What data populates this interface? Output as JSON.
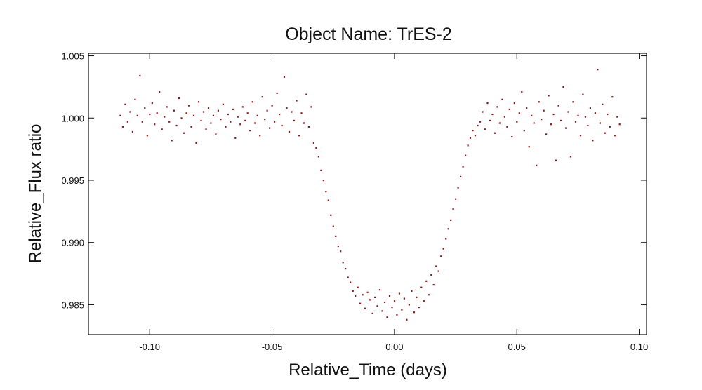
{
  "chart_data": {
    "type": "scatter",
    "title": "Object Name:  TrES-2",
    "xlabel": "Relative_Time (days)",
    "ylabel": "Relative_Flux ratio",
    "xlim": [
      -0.125,
      0.103
    ],
    "ylim": [
      0.9826,
      1.0052
    ],
    "xticks": [
      -0.1,
      -0.05,
      0.0,
      0.05,
      0.1
    ],
    "xtick_labels": [
      "-0.10",
      "-0.05",
      "0.00",
      "0.05",
      "0.10"
    ],
    "yticks": [
      0.985,
      0.99,
      0.995,
      1.0,
      1.005
    ],
    "ytick_labels": [
      "0.985",
      "0.990",
      "0.995",
      "1.000",
      "1.005"
    ],
    "grid": false,
    "marker_color": "#8b1a1a",
    "series": [
      {
        "values": [
          [
            -0.112,
            1.0002
          ],
          [
            -0.111,
            0.9993
          ],
          [
            -0.11,
            1.0011
          ],
          [
            -0.109,
            0.9997
          ],
          [
            -0.108,
            1.0005
          ],
          [
            -0.107,
            0.9989
          ],
          [
            -0.106,
            1.0015
          ],
          [
            -0.105,
            1.0002
          ],
          [
            -0.104,
            1.0034
          ],
          [
            -0.103,
            0.9997
          ],
          [
            -0.102,
            1.0008
          ],
          [
            -0.101,
            0.9986
          ],
          [
            -0.1,
            1.0003
          ],
          [
            -0.099,
            1.0012
          ],
          [
            -0.098,
            0.9995
          ],
          [
            -0.097,
            1.0004
          ],
          [
            -0.096,
            1.0021
          ],
          [
            -0.095,
            0.9991
          ],
          [
            -0.094,
            1.0001
          ],
          [
            -0.093,
            1.0009
          ],
          [
            -0.092,
            0.9997
          ],
          [
            -0.091,
            0.9982
          ],
          [
            -0.09,
            1.0006
          ],
          [
            -0.089,
            0.9994
          ],
          [
            -0.088,
            1.0016
          ],
          [
            -0.087,
            1.0
          ],
          [
            -0.086,
            0.9988
          ],
          [
            -0.085,
            1.0004
          ],
          [
            -0.084,
            1.001
          ],
          [
            -0.083,
            0.9993
          ],
          [
            -0.082,
            1.0002
          ],
          [
            -0.081,
            0.998
          ],
          [
            -0.08,
            1.0013
          ],
          [
            -0.079,
            0.9998
          ],
          [
            -0.078,
            1.0005
          ],
          [
            -0.077,
            0.9991
          ],
          [
            -0.076,
            1.0008
          ],
          [
            -0.075,
            0.9996
          ],
          [
            -0.074,
            1.0002
          ],
          [
            -0.073,
            0.9987
          ],
          [
            -0.072,
            1.0006
          ],
          [
            -0.071,
            0.9999
          ],
          [
            -0.07,
            1.0011
          ],
          [
            -0.069,
            0.9993
          ],
          [
            -0.068,
            1.0003
          ],
          [
            -0.067,
            0.9997
          ],
          [
            -0.066,
            1.0007
          ],
          [
            -0.065,
            0.9984
          ],
          [
            -0.064,
            1.0001
          ],
          [
            -0.063,
            0.9995
          ],
          [
            -0.062,
            1.0009
          ],
          [
            -0.061,
            0.9998
          ],
          [
            -0.06,
            1.0004
          ],
          [
            -0.059,
            0.999
          ],
          [
            -0.058,
            1.0013
          ],
          [
            -0.057,
            0.9996
          ],
          [
            -0.056,
            1.0002
          ],
          [
            -0.055,
            0.9986
          ],
          [
            -0.054,
            1.0017
          ],
          [
            -0.053,
            0.9999
          ],
          [
            -0.052,
            1.0006
          ],
          [
            -0.051,
            0.9992
          ],
          [
            -0.05,
            1.001
          ],
          [
            -0.049,
            0.9997
          ],
          [
            -0.048,
            1.002
          ],
          [
            -0.047,
            1.0003
          ],
          [
            -0.046,
            0.9994
          ],
          [
            -0.045,
            1.0033
          ],
          [
            -0.044,
            1.0008
          ],
          [
            -0.043,
            0.9989
          ],
          [
            -0.042,
            1.0005
          ],
          [
            -0.041,
            0.9998
          ],
          [
            -0.04,
            1.0014
          ],
          [
            -0.039,
            0.9986
          ],
          [
            -0.038,
            1.0004
          ],
          [
            -0.037,
            0.9996
          ],
          [
            -0.036,
            1.0019
          ],
          [
            -0.035,
            0.9993
          ],
          [
            -0.034,
            1.0009
          ],
          [
            -0.033,
            0.998
          ],
          [
            -0.032,
            0.9976
          ],
          [
            -0.031,
            0.9969
          ],
          [
            -0.03,
            0.9958
          ],
          [
            -0.029,
            0.995
          ],
          [
            -0.028,
            0.9941
          ],
          [
            -0.027,
            0.9934
          ],
          [
            -0.026,
            0.9922
          ],
          [
            -0.025,
            0.9913
          ],
          [
            -0.024,
            0.9905
          ],
          [
            -0.023,
            0.9897
          ],
          [
            -0.022,
            0.9893
          ],
          [
            -0.021,
            0.9884
          ],
          [
            -0.02,
            0.9879
          ],
          [
            -0.019,
            0.9872
          ],
          [
            -0.018,
            0.9868
          ],
          [
            -0.017,
            0.9861
          ],
          [
            -0.016,
            0.9857
          ],
          [
            -0.015,
            0.9864
          ],
          [
            -0.014,
            0.9851
          ],
          [
            -0.013,
            0.9858
          ],
          [
            -0.012,
            0.9847
          ],
          [
            -0.011,
            0.986
          ],
          [
            -0.01,
            0.9854
          ],
          [
            -0.009,
            0.9843
          ],
          [
            -0.008,
            0.9856
          ],
          [
            -0.007,
            0.9849
          ],
          [
            -0.006,
            0.9862
          ],
          [
            -0.005,
            0.9845
          ],
          [
            -0.004,
            0.9852
          ],
          [
            -0.003,
            0.984
          ],
          [
            -0.002,
            0.9857
          ],
          [
            -0.001,
            0.9848
          ],
          [
            0.0,
            0.9853
          ],
          [
            0.001,
            0.9842
          ],
          [
            0.002,
            0.9859
          ],
          [
            0.003,
            0.9846
          ],
          [
            0.004,
            0.9855
          ],
          [
            0.005,
            0.9838
          ],
          [
            0.006,
            0.985
          ],
          [
            0.007,
            0.9861
          ],
          [
            0.008,
            0.9844
          ],
          [
            0.009,
            0.9856
          ],
          [
            0.01,
            0.9848
          ],
          [
            0.011,
            0.9864
          ],
          [
            0.012,
            0.9853
          ],
          [
            0.013,
            0.9869
          ],
          [
            0.014,
            0.9858
          ],
          [
            0.015,
            0.9874
          ],
          [
            0.016,
            0.9866
          ],
          [
            0.017,
            0.9881
          ],
          [
            0.018,
            0.9877
          ],
          [
            0.019,
            0.9889
          ],
          [
            0.02,
            0.9895
          ],
          [
            0.021,
            0.9903
          ],
          [
            0.022,
            0.9911
          ],
          [
            0.023,
            0.9918
          ],
          [
            0.024,
            0.9927
          ],
          [
            0.025,
            0.9935
          ],
          [
            0.026,
            0.9944
          ],
          [
            0.027,
            0.9953
          ],
          [
            0.028,
            0.9961
          ],
          [
            0.029,
            0.997
          ],
          [
            0.03,
            0.9978
          ],
          [
            0.031,
            0.9984
          ],
          [
            0.032,
            0.999
          ],
          [
            0.033,
            0.9986
          ],
          [
            0.034,
            0.9994
          ],
          [
            0.035,
            0.9997
          ],
          [
            0.036,
            1.0005
          ],
          [
            0.037,
            0.9991
          ],
          [
            0.038,
            1.0012
          ],
          [
            0.039,
            0.9998
          ],
          [
            0.04,
            1.0003
          ],
          [
            0.041,
            0.9988
          ],
          [
            0.042,
            1.0009
          ],
          [
            0.043,
            0.9996
          ],
          [
            0.044,
            1.0015
          ],
          [
            0.045,
            1.0001
          ],
          [
            0.046,
            0.9993
          ],
          [
            0.047,
            1.0007
          ],
          [
            0.048,
            0.9985
          ],
          [
            0.049,
            1.0012
          ],
          [
            0.05,
            0.9997
          ],
          [
            0.051,
            1.0004
          ],
          [
            0.052,
            1.0021
          ],
          [
            0.053,
            0.999
          ],
          [
            0.054,
            1.0008
          ],
          [
            0.055,
            0.9977
          ],
          [
            0.056,
            1.0002
          ],
          [
            0.057,
            0.9996
          ],
          [
            0.058,
            0.9962
          ],
          [
            0.059,
            1.0013
          ],
          [
            0.06,
            0.9999
          ],
          [
            0.061,
            1.0006
          ],
          [
            0.062,
            0.9987
          ],
          [
            0.063,
            1.0018
          ],
          [
            0.064,
            0.9995
          ],
          [
            0.065,
            1.0003
          ],
          [
            0.066,
            0.9966
          ],
          [
            0.067,
            1.001
          ],
          [
            0.068,
            0.9998
          ],
          [
            0.069,
            1.0025
          ],
          [
            0.07,
            0.9992
          ],
          [
            0.071,
            1.0005
          ],
          [
            0.072,
            0.9969
          ],
          [
            0.073,
            1.0013
          ],
          [
            0.074,
            0.9997
          ],
          [
            0.075,
            1.0002
          ],
          [
            0.076,
            0.9986
          ],
          [
            0.077,
            1.0019
          ],
          [
            0.078,
            1.0001
          ],
          [
            0.079,
            0.9994
          ],
          [
            0.08,
            1.0008
          ],
          [
            0.081,
            0.9982
          ],
          [
            0.082,
            1.0004
          ],
          [
            0.083,
            1.0039
          ],
          [
            0.084,
            0.9996
          ],
          [
            0.085,
            1.0011
          ],
          [
            0.086,
            0.9988
          ],
          [
            0.087,
            1.0003
          ],
          [
            0.088,
            0.9993
          ],
          [
            0.089,
            1.0017
          ],
          [
            0.09,
            0.9986
          ],
          [
            0.091,
            1.0001
          ],
          [
            0.092,
            0.9995
          ]
        ]
      }
    ]
  }
}
